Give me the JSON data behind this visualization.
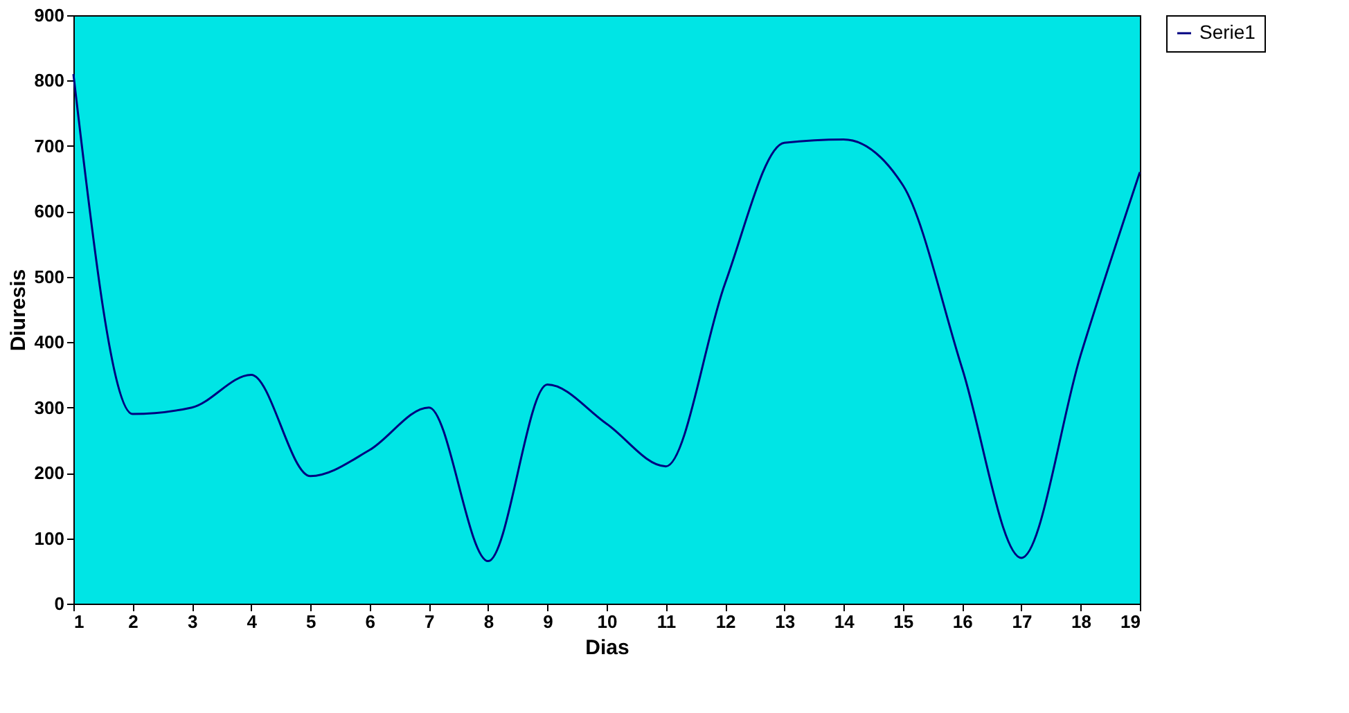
{
  "chart_data": {
    "type": "line",
    "xlabel": "Dias",
    "ylabel": "Diuresis",
    "x": [
      1,
      2,
      3,
      4,
      5,
      6,
      7,
      8,
      9,
      10,
      11,
      12,
      13,
      14,
      15,
      16,
      17,
      18,
      19
    ],
    "series": [
      {
        "name": "Serie1",
        "color": "#000080",
        "values": [
          810,
          290,
          300,
          350,
          195,
          235,
          300,
          65,
          335,
          275,
          210,
          490,
          705,
          710,
          640,
          360,
          70,
          380,
          660
        ]
      }
    ],
    "xlim": [
      1,
      19
    ],
    "xticks": [
      1,
      2,
      3,
      4,
      5,
      6,
      7,
      8,
      9,
      10,
      11,
      12,
      13,
      14,
      15,
      16,
      17,
      18,
      19
    ],
    "ylim": [
      0,
      900
    ],
    "yticks": [
      0,
      100,
      200,
      300,
      400,
      500,
      600,
      700,
      800,
      900
    ],
    "grid": false,
    "legend": "right",
    "marker": "none",
    "line_style": "solid"
  }
}
